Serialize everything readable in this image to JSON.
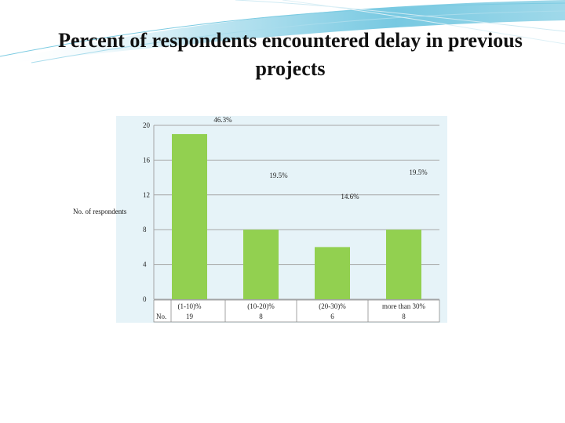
{
  "slide": {
    "title": "Percent of respondents encountered delay in previous projects"
  },
  "colors": {
    "bar": "#92D050",
    "plot_bg": "#E6F3F8",
    "grid": "#A6A6A6",
    "banner": "#4BACC6"
  },
  "chart_data": {
    "type": "bar",
    "title": "",
    "ylabel": "No. of respondents",
    "xlabel": "",
    "ylim": [
      0,
      20
    ],
    "yticks": [
      0,
      4,
      8,
      12,
      16,
      20
    ],
    "grid": true,
    "categories": [
      "(1-10)%",
      "(10-20)%",
      "(20-30)%",
      "more than 30%"
    ],
    "values": [
      19,
      8,
      6,
      8
    ],
    "data_labels": [
      "46.3%",
      "19.5%",
      "14.6%",
      "19.5%"
    ],
    "table": {
      "row_label": "No.",
      "categories": [
        "(1-10)%",
        "(10-20)%",
        "(20-30)%",
        "more than 30%"
      ],
      "values": [
        "19",
        "8",
        "6",
        "8"
      ]
    }
  }
}
